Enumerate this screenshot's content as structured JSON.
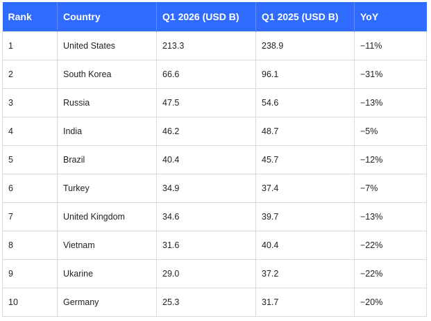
{
  "table": {
    "headers": [
      "Rank",
      "Country",
      "Q1 2026 (USD B)",
      "Q1 2025 (USD B)",
      "YoY"
    ],
    "rows": [
      [
        "1",
        "United States",
        "213.3",
        "238.9",
        "−11%"
      ],
      [
        "2",
        "South Korea",
        "66.6",
        "96.1",
        "−31%"
      ],
      [
        "3",
        "Russia",
        "47.5",
        "54.6",
        "−13%"
      ],
      [
        "4",
        "India",
        "46.2",
        "48.7",
        "−5%"
      ],
      [
        "5",
        "Brazil",
        "40.4",
        "45.7",
        "−12%"
      ],
      [
        "6",
        "Turkey",
        "34.9",
        "37.4",
        "−7%"
      ],
      [
        "7",
        "United Kingdom",
        "34.6",
        "39.7",
        "−13%"
      ],
      [
        "8",
        "Vietnam",
        "31.6",
        "40.4",
        "−22%"
      ],
      [
        "9",
        "Ukarine",
        "29.0",
        "37.2",
        "−22%"
      ],
      [
        "10",
        "Germany",
        "25.3",
        "31.7",
        "−20%"
      ]
    ]
  },
  "colors": {
    "header_background": "#2f6bff",
    "header_text": "#ffffff",
    "border": "#d9d9d9"
  }
}
